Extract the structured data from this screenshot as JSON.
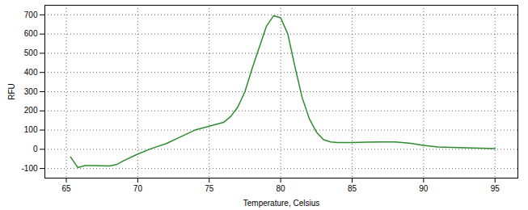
{
  "chart_data": {
    "type": "line",
    "x_label": "Temperature, Celsius",
    "y_label": "RFU",
    "x": [
      65.3,
      65.8,
      66.3,
      67,
      68,
      68.5,
      69,
      70,
      71,
      72,
      73,
      74,
      75,
      76,
      76.5,
      77,
      77.5,
      78,
      78.5,
      79,
      79.5,
      80,
      80.5,
      81,
      81.5,
      82,
      82.5,
      83,
      83.5,
      84,
      85,
      86,
      87,
      88,
      89,
      90,
      91,
      92,
      93,
      94,
      95
    ],
    "values": [
      -40,
      -95,
      -85,
      -85,
      -87,
      -80,
      -60,
      -25,
      5,
      30,
      65,
      100,
      120,
      140,
      170,
      220,
      300,
      420,
      530,
      640,
      695,
      685,
      600,
      430,
      270,
      160,
      90,
      50,
      38,
      35,
      35,
      37,
      38,
      38,
      32,
      20,
      12,
      10,
      8,
      6,
      3
    ],
    "color": "#2e8b2e",
    "xlim": [
      63.5,
      96.6
    ],
    "xticks": [
      65,
      70,
      75,
      80,
      85,
      90,
      95
    ],
    "ylim": [
      -150,
      750
    ],
    "yticks": [
      -100,
      0,
      100,
      200,
      300,
      400,
      500,
      600,
      700
    ],
    "grid": true
  }
}
